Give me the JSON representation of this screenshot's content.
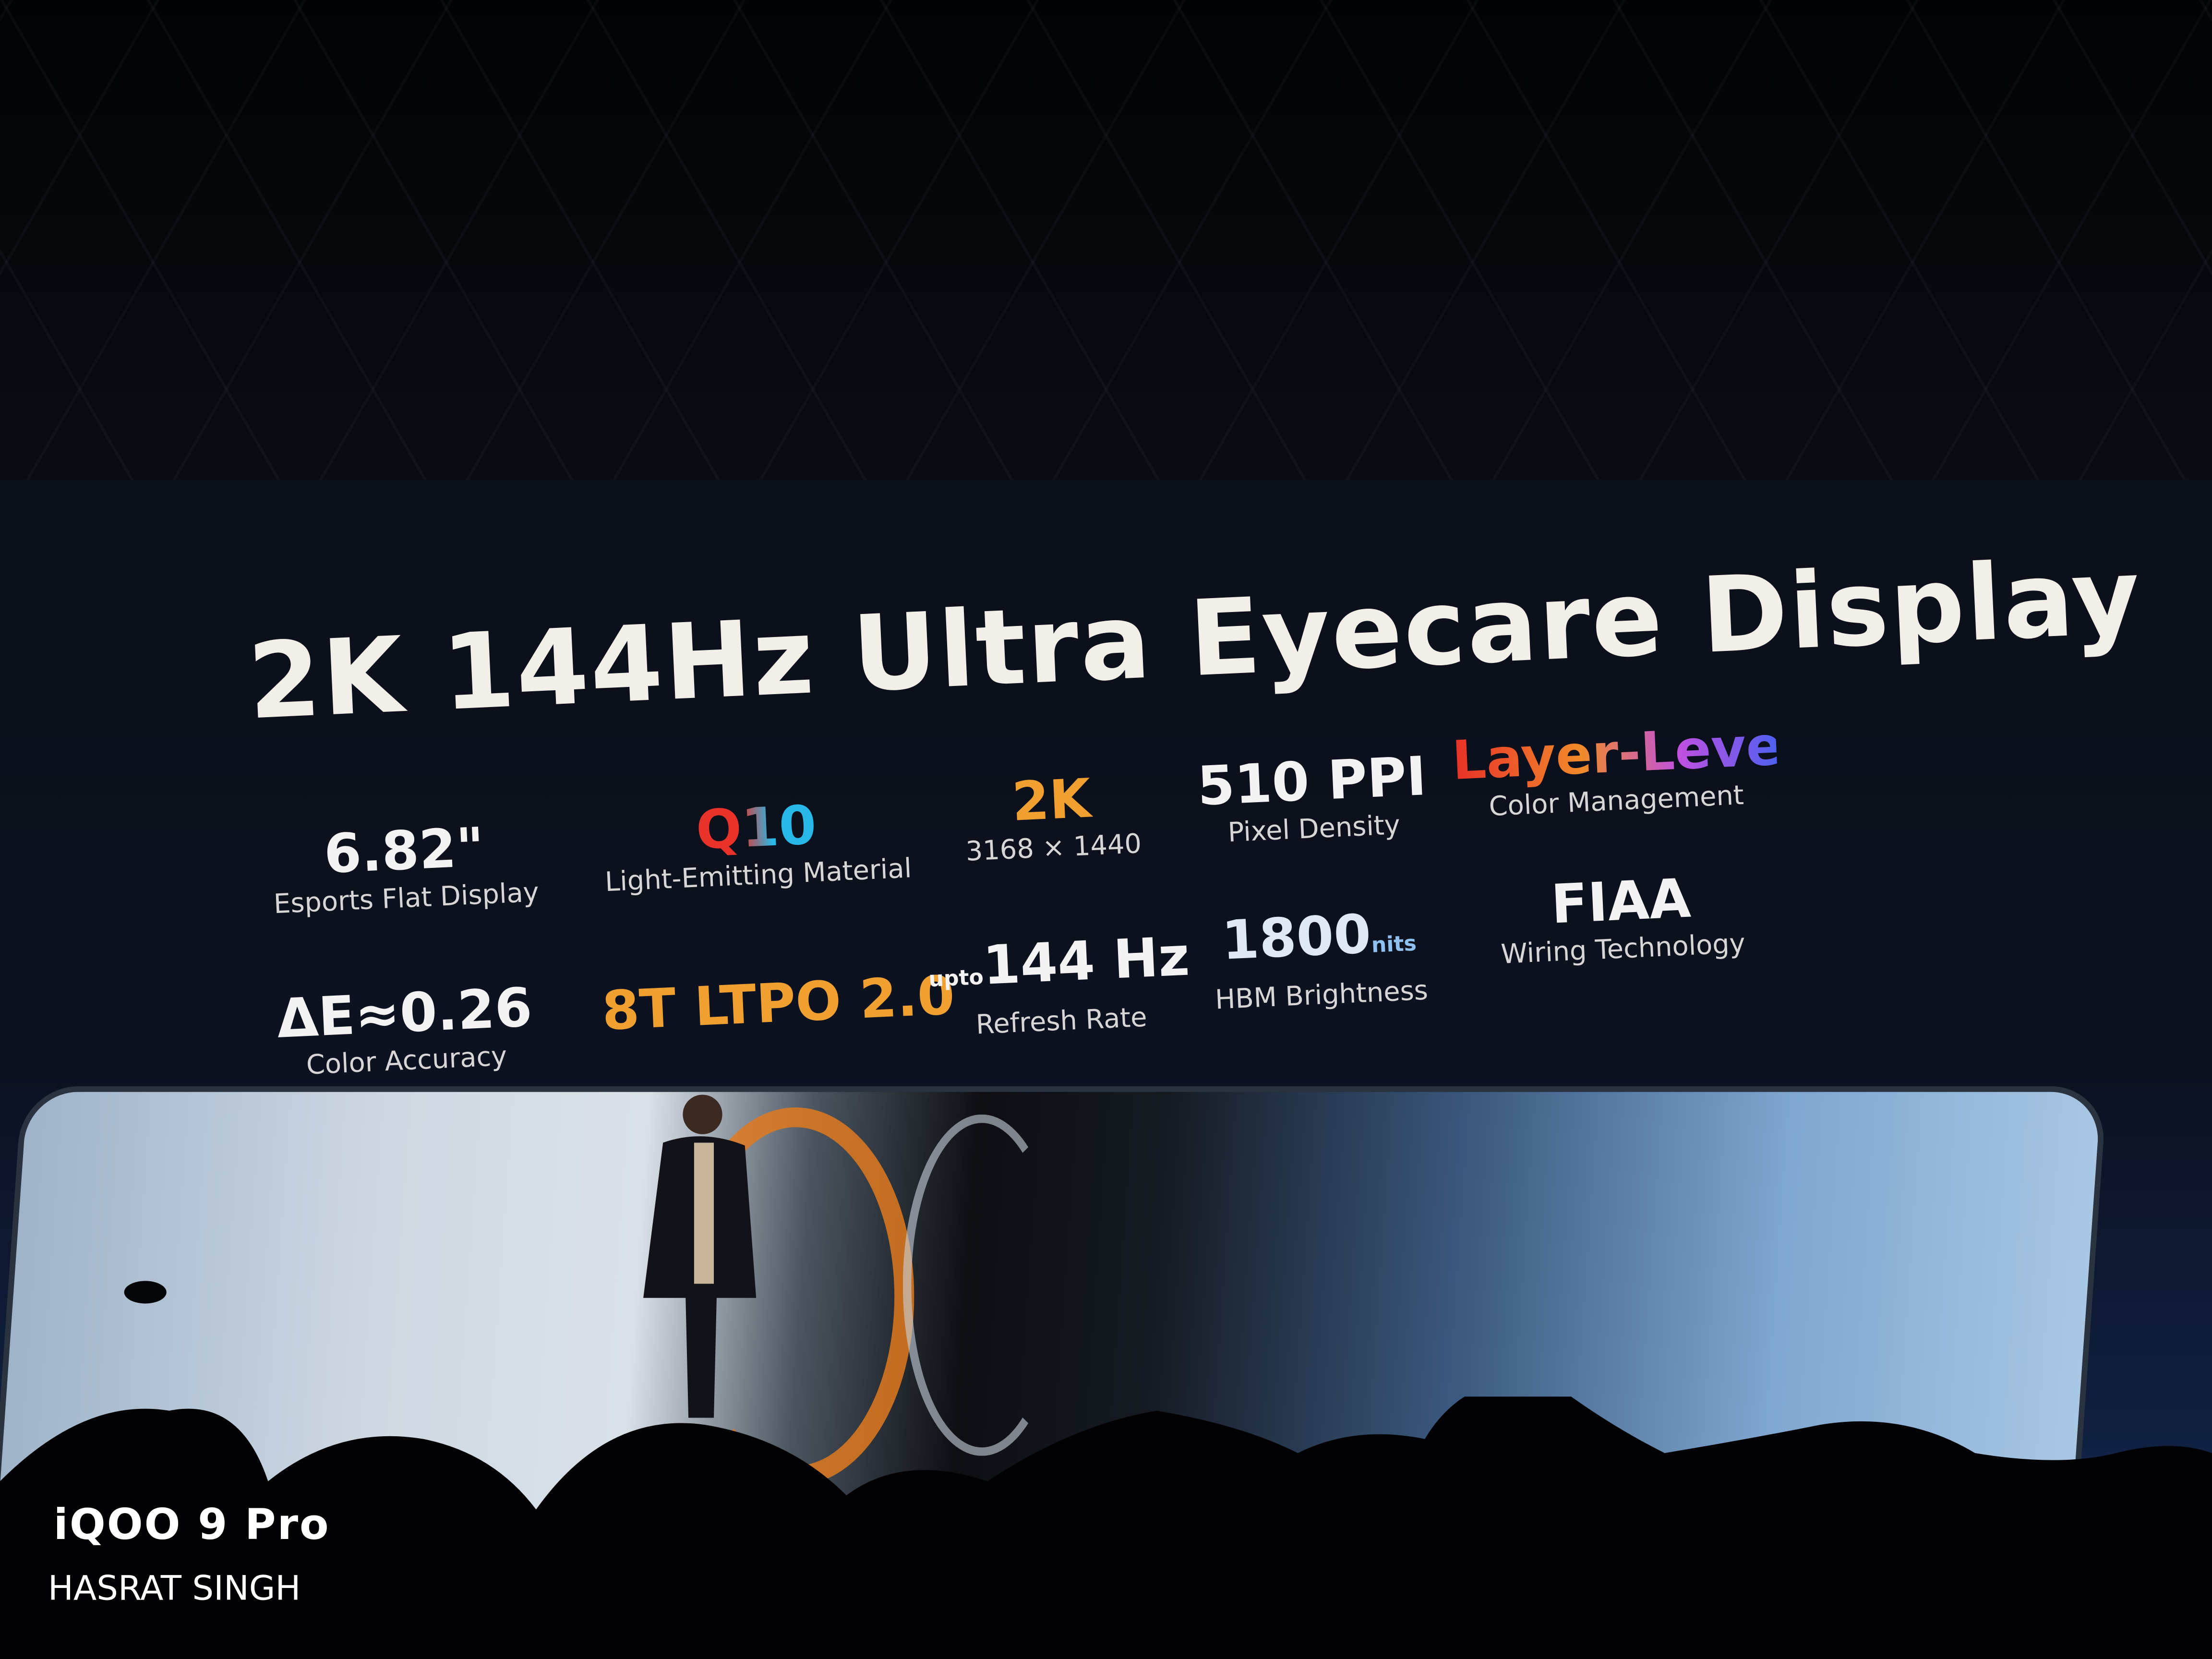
{
  "slide": {
    "title": "2K 144Hz Ultra Eyecare Display",
    "specs_row1": [
      {
        "value": "6.82\"",
        "label": "Esports Flat Display"
      },
      {
        "value": "Q10",
        "label": "Light-Emitting Material"
      },
      {
        "value": "2K",
        "label": "3168 × 1440"
      },
      {
        "value": "510 PPI",
        "label": "Pixel Density"
      },
      {
        "value": "Layer-Level",
        "label": "Color Management"
      }
    ],
    "specs_row2": [
      {
        "value": "ΔE≈0.26",
        "label": "Color Accuracy"
      },
      {
        "value": "8T LTPO 2.0",
        "label": ""
      },
      {
        "prefix": "upto",
        "value": "144 Hz",
        "label": "Refresh Rate"
      },
      {
        "value": "1800",
        "suffix": "nits",
        "label": "HBM Brightness"
      },
      {
        "value": "FIAA",
        "label": "Wiring Technology"
      }
    ],
    "colors": {
      "orange": "#f0a030",
      "q_red": "#e8322a",
      "q_blue": "#28b8e8"
    }
  },
  "watermark": {
    "device": "iQOO 9 Pro",
    "photographer": "HASRAT SINGH"
  }
}
